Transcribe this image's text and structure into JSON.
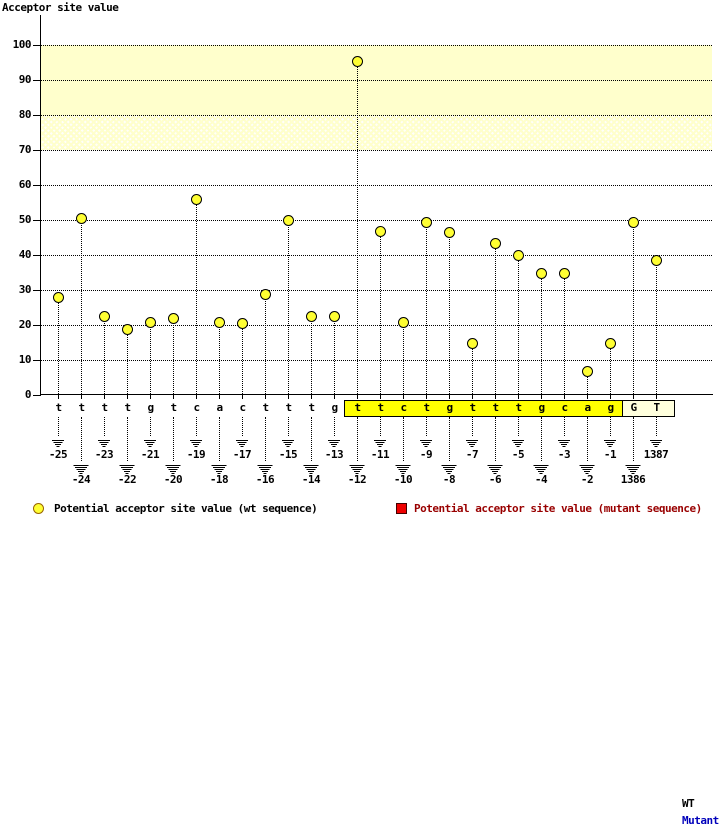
{
  "page": {
    "title": "Acceptor site value"
  },
  "chart_data": {
    "type": "scatter",
    "title": "Acceptor site value",
    "ylabel": "Acceptor site value",
    "xlabel": "",
    "ylim": [
      0,
      100
    ],
    "yticks": [
      0,
      10,
      20,
      30,
      40,
      50,
      60,
      70,
      80,
      90,
      100
    ],
    "grid": "horizontal-dotted",
    "legend_position": "bottom",
    "bands": [
      {
        "from": 80,
        "to": 100,
        "style": "solid",
        "color": "#FFFFCC"
      },
      {
        "from": 70,
        "to": 80,
        "style": "hatch",
        "color": "#FFFFCC"
      }
    ],
    "series": [
      {
        "name": "Potential acceptor site value (wt sequence)",
        "marker": "yellow-circle",
        "points": [
          {
            "pos": "-25",
            "base": "t",
            "value": 28,
            "group": "upstream"
          },
          {
            "pos": "-24",
            "base": "t",
            "value": 50.5,
            "group": "upstream"
          },
          {
            "pos": "-23",
            "base": "t",
            "value": 22.5,
            "group": "upstream"
          },
          {
            "pos": "-22",
            "base": "t",
            "value": 19,
            "group": "upstream"
          },
          {
            "pos": "-21",
            "base": "g",
            "value": 21,
            "group": "upstream"
          },
          {
            "pos": "-20",
            "base": "t",
            "value": 22,
            "group": "upstream"
          },
          {
            "pos": "-19",
            "base": "c",
            "value": 56,
            "group": "upstream"
          },
          {
            "pos": "-18",
            "base": "a",
            "value": 21,
            "group": "upstream"
          },
          {
            "pos": "-17",
            "base": "c",
            "value": 20.5,
            "group": "upstream"
          },
          {
            "pos": "-16",
            "base": "t",
            "value": 29,
            "group": "upstream"
          },
          {
            "pos": "-15",
            "base": "t",
            "value": 50,
            "group": "upstream"
          },
          {
            "pos": "-14",
            "base": "t",
            "value": 22.5,
            "group": "upstream"
          },
          {
            "pos": "-13",
            "base": "g",
            "value": 22.5,
            "group": "upstream"
          },
          {
            "pos": "-12",
            "base": "t",
            "value": 95.5,
            "group": "acceptor"
          },
          {
            "pos": "-11",
            "base": "t",
            "value": 47,
            "group": "acceptor"
          },
          {
            "pos": "-10",
            "base": "c",
            "value": 21,
            "group": "acceptor"
          },
          {
            "pos": "-9",
            "base": "t",
            "value": 49.5,
            "group": "acceptor"
          },
          {
            "pos": "-8",
            "base": "g",
            "value": 46.5,
            "group": "acceptor"
          },
          {
            "pos": "-7",
            "base": "t",
            "value": 15,
            "group": "acceptor"
          },
          {
            "pos": "-6",
            "base": "t",
            "value": 43.5,
            "group": "acceptor"
          },
          {
            "pos": "-5",
            "base": "t",
            "value": 40,
            "group": "acceptor"
          },
          {
            "pos": "-4",
            "base": "g",
            "value": 35,
            "group": "acceptor"
          },
          {
            "pos": "-3",
            "base": "c",
            "value": 35,
            "group": "acceptor"
          },
          {
            "pos": "-2",
            "base": "a",
            "value": 7,
            "group": "acceptor"
          },
          {
            "pos": "-1",
            "base": "g",
            "value": 15,
            "group": "acceptor"
          },
          {
            "pos": "1386",
            "base": "G",
            "value": 49.5,
            "group": "exon"
          },
          {
            "pos": "1387",
            "base": "T",
            "value": 38.5,
            "group": "exon"
          }
        ]
      }
    ]
  },
  "sequence_track": {
    "wt_label": "WT",
    "mutant_label": "Mutant"
  },
  "legend": {
    "wt": {
      "marker": "yellow-circle",
      "label": "Potential acceptor site value (wt sequence)"
    },
    "mutant": {
      "marker": "red-square",
      "label": "Potential acceptor site value (mutant sequence)"
    }
  },
  "colors": {
    "point_fill": "#FFFF33",
    "band_solid": "#FFFFCC",
    "acceptor_box": "#FFFF00",
    "exon_box": "#FFFFDD",
    "mutant_row_text": "#0000BB",
    "legend_mutant_text": "#990000",
    "legend_square_fill": "#EE0000"
  }
}
